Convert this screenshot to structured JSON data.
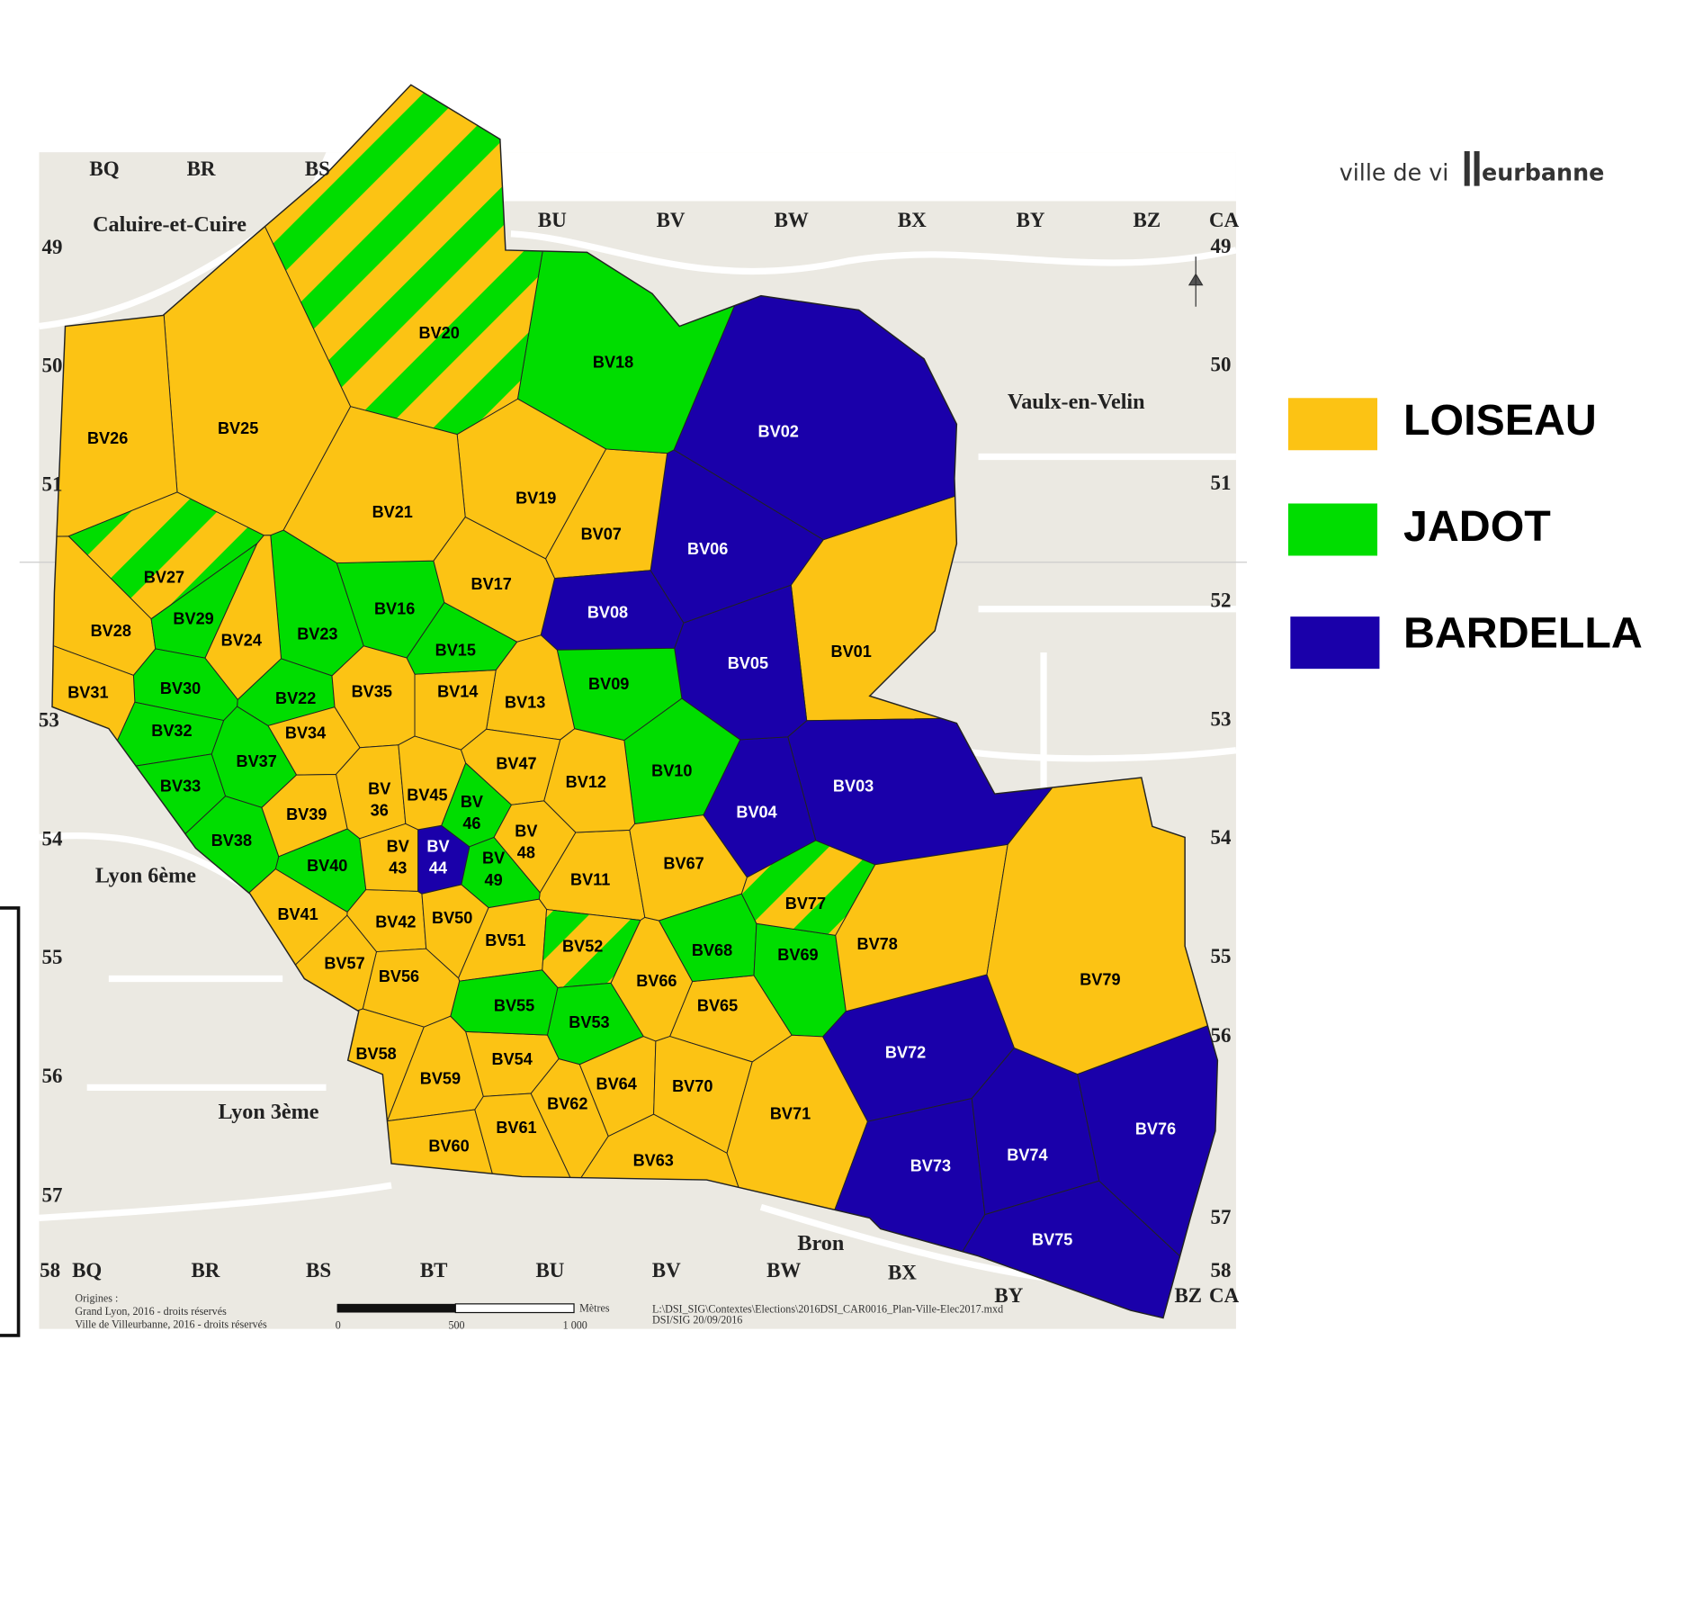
{
  "map": {
    "districts": [
      {
        "label": "BV01",
        "color": "#fcc314"
      },
      {
        "label": "BV02",
        "color": "#1a00aa"
      },
      {
        "label": "BV03",
        "color": "#1a00aa"
      },
      {
        "label": "BV04",
        "color": "#1a00aa"
      },
      {
        "label": "BV05",
        "color": "#1a00aa"
      },
      {
        "label": "BV06",
        "color": "#1a00aa"
      },
      {
        "label": "BV07",
        "color": "#fcc314"
      },
      {
        "label": "BV08",
        "color": "#1a00aa"
      },
      {
        "label": "BV09",
        "color": "#00dd00"
      },
      {
        "label": "BV10",
        "color": "#00dd00"
      },
      {
        "label": "BV11",
        "color": "#fcc314"
      },
      {
        "label": "BV12",
        "color": "#fcc314"
      },
      {
        "label": "BV13",
        "color": "#fcc314"
      },
      {
        "label": "BV14",
        "color": "#fcc314"
      },
      {
        "label": "BV15",
        "color": "#00dd00"
      },
      {
        "label": "BV16",
        "color": "#00dd00"
      },
      {
        "label": "BV17",
        "color": "#fcc314"
      },
      {
        "label": "BV18",
        "color": "#00dd00"
      },
      {
        "label": "BV19",
        "color": "#fcc314"
      },
      {
        "label": "BV20",
        "colors": [
          "#fcc314",
          "#00dd00"
        ]
      },
      {
        "label": "BV21",
        "color": "#fcc314"
      },
      {
        "label": "BV22",
        "color": "#00dd00"
      },
      {
        "label": "BV23",
        "color": "#00dd00"
      },
      {
        "label": "BV24",
        "color": "#fcc314"
      },
      {
        "label": "BV25",
        "color": "#fcc314"
      },
      {
        "label": "BV26",
        "color": "#fcc314"
      },
      {
        "label": "BV27",
        "colors": [
          "#fcc314",
          "#00dd00"
        ]
      },
      {
        "label": "BV28",
        "color": "#fcc314"
      },
      {
        "label": "BV29",
        "color": "#00dd00"
      },
      {
        "label": "BV30",
        "color": "#00dd00"
      },
      {
        "label": "BV31",
        "color": "#fcc314"
      },
      {
        "label": "BV32",
        "color": "#00dd00"
      },
      {
        "label": "BV33",
        "color": "#00dd00"
      },
      {
        "label": "BV34",
        "color": "#fcc314"
      },
      {
        "label": "BV35",
        "color": "#fcc314"
      },
      {
        "label": [
          "BV",
          "36"
        ],
        "color": "#fcc314"
      },
      {
        "label": "BV37",
        "color": "#00dd00"
      },
      {
        "label": "BV38",
        "color": "#00dd00"
      },
      {
        "label": "BV39",
        "color": "#fcc314"
      },
      {
        "label": "BV40",
        "color": "#00dd00"
      },
      {
        "label": "BV41",
        "color": "#fcc314"
      },
      {
        "label": "BV42",
        "color": "#fcc314"
      },
      {
        "label": [
          "BV",
          "43"
        ],
        "color": "#fcc314"
      },
      {
        "label": [
          "BV",
          "44"
        ],
        "color": "#1a00aa"
      },
      {
        "label": "BV45",
        "color": "#fcc314"
      },
      {
        "label": [
          "BV",
          "46"
        ],
        "color": "#00dd00"
      },
      {
        "label": "BV47",
        "color": "#fcc314"
      },
      {
        "label": [
          "BV",
          "48"
        ],
        "color": "#fcc314"
      },
      {
        "label": [
          "BV",
          "49"
        ],
        "color": "#00dd00"
      },
      {
        "label": "BV50",
        "color": "#fcc314"
      },
      {
        "label": "BV51",
        "color": "#fcc314"
      },
      {
        "label": "BV52",
        "colors": [
          "#fcc314",
          "#00dd00"
        ]
      },
      {
        "label": "BV53",
        "color": "#00dd00"
      },
      {
        "label": "BV54",
        "color": "#fcc314"
      },
      {
        "label": "BV55",
        "color": "#00dd00"
      },
      {
        "label": "BV56",
        "color": "#fcc314"
      },
      {
        "label": "BV57",
        "color": "#fcc314"
      },
      {
        "label": "BV58",
        "color": "#fcc314"
      },
      {
        "label": "BV59",
        "color": "#fcc314"
      },
      {
        "label": "BV60",
        "color": "#fcc314"
      },
      {
        "label": "BV61",
        "color": "#fcc314"
      },
      {
        "label": "BV62",
        "color": "#fcc314"
      },
      {
        "label": "BV63",
        "color": "#fcc314"
      },
      {
        "label": "BV64",
        "color": "#fcc314"
      },
      {
        "label": "BV65",
        "color": "#fcc314"
      },
      {
        "label": "BV66",
        "color": "#fcc314"
      },
      {
        "label": "BV67",
        "color": "#fcc314"
      },
      {
        "label": "BV68",
        "color": "#00dd00"
      },
      {
        "label": "BV69",
        "color": "#00dd00"
      },
      {
        "label": "BV70",
        "color": "#fcc314"
      },
      {
        "label": "BV71",
        "color": "#fcc314"
      },
      {
        "label": "BV72",
        "color": "#1a00aa"
      },
      {
        "label": "BV73",
        "color": "#1a00aa"
      },
      {
        "label": "BV74",
        "color": "#1a00aa"
      },
      {
        "label": "BV75",
        "color": "#1a00aa"
      },
      {
        "label": "BV76",
        "color": "#1a00aa"
      },
      {
        "label": "BV77",
        "colors": [
          "#fcc314",
          "#00dd00"
        ]
      },
      {
        "label": "BV78",
        "color": "#fcc314"
      },
      {
        "label": "BV79",
        "color": "#fcc314"
      }
    ],
    "grid": {
      "top": [
        "BQ",
        "BR",
        "BS",
        "BU",
        "BV",
        "BW",
        "BX",
        "BY",
        "BZ",
        "CA"
      ],
      "bottom": [
        "BQ",
        "BR",
        "BS",
        "BT",
        "BU",
        "BV",
        "BW",
        "BX",
        "BY",
        "BZ",
        "CA"
      ],
      "left": [
        "49",
        "50",
        "51",
        "53",
        "54",
        "55",
        "56",
        "57",
        "58"
      ],
      "right": [
        "49",
        "50",
        "51",
        "52",
        "53",
        "54",
        "55",
        "56",
        "57",
        "58"
      ]
    },
    "places": [
      "Caluire-et-Cuire",
      "Vaulx-en-Velin",
      "Lyon 6ème",
      "Lyon 3ème",
      "Bron"
    ],
    "legend": [
      {
        "name": "LOISEAU",
        "color": "#fcc314"
      },
      {
        "name": "JADOT",
        "color": "#00dd00"
      },
      {
        "name": "BARDELLA",
        "color": "#1a00aa"
      }
    ],
    "logo": {
      "left": "ville de vi",
      "right": "eurbanne"
    },
    "footer": {
      "sources": [
        "Origines :",
        "Grand Lyon, 2016 - droits réservés",
        "Ville de Villeurbanne, 2016 - droits réservés"
      ],
      "scale_unit": "Mètres",
      "scale_labels": [
        "0",
        "500",
        "1 000"
      ],
      "file": [
        "L:\\DSI_SIG\\Contextes\\Elections\\2016DSI_CAR0016_Plan-Ville-Elec2017.mxd",
        "DSI/SIG 20/09/2016"
      ]
    }
  }
}
